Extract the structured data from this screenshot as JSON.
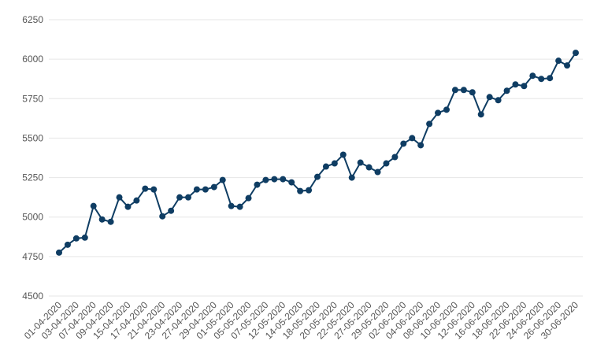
{
  "chart_data": {
    "type": "line",
    "categories": [
      "01-04-2020",
      null,
      "03-04-2020",
      null,
      "07-04-2020",
      null,
      "09-04-2020",
      null,
      "15-04-2020",
      null,
      "17-04-2020",
      null,
      "21-04-2020",
      null,
      "23-04-2020",
      null,
      "27-04-2020",
      null,
      "29-04-2020",
      null,
      "01-05-2020",
      null,
      "05-05-2020",
      null,
      "07-05-2020",
      null,
      "12-05-2020",
      null,
      "14-05-2020",
      null,
      "18-05-2020",
      null,
      "20-05-2020",
      null,
      "22-05-2020",
      null,
      "27-05-2020",
      null,
      "29-05-2020",
      null,
      "02-06-2020",
      null,
      "04-06-2020",
      null,
      "08-06-2020",
      null,
      "10-06-2020",
      null,
      "12-06-2020",
      null,
      "16-06-2020",
      null,
      "18-06-2020",
      null,
      "22-06-2020",
      null,
      "24-06-2020",
      null,
      "26-06-2020",
      null,
      "30-06-2020"
    ],
    "series": [
      {
        "color": "#0f3d63",
        "values": [
          4775,
          4825,
          4865,
          4870,
          5070,
          4985,
          4970,
          5125,
          5065,
          5105,
          5180,
          5175,
          5005,
          5040,
          5125,
          5125,
          5175,
          5175,
          5190,
          5235,
          5070,
          5065,
          5120,
          5205,
          5235,
          5240,
          5240,
          5220,
          5165,
          5170,
          5255,
          5320,
          5340,
          5395,
          5250,
          5345,
          5315,
          5285,
          5340,
          5380,
          5465,
          5500,
          5455,
          5590,
          5660,
          5680,
          5805,
          5805,
          5790,
          5650,
          5760,
          5740,
          5800,
          5840,
          5830,
          5895,
          5875,
          5880,
          5990,
          5960,
          6040
        ]
      }
    ],
    "ylim": [
      4500,
      6250
    ],
    "yticks": [
      4500,
      4750,
      5000,
      5250,
      5500,
      5750,
      6000,
      6250
    ],
    "grid": true
  }
}
